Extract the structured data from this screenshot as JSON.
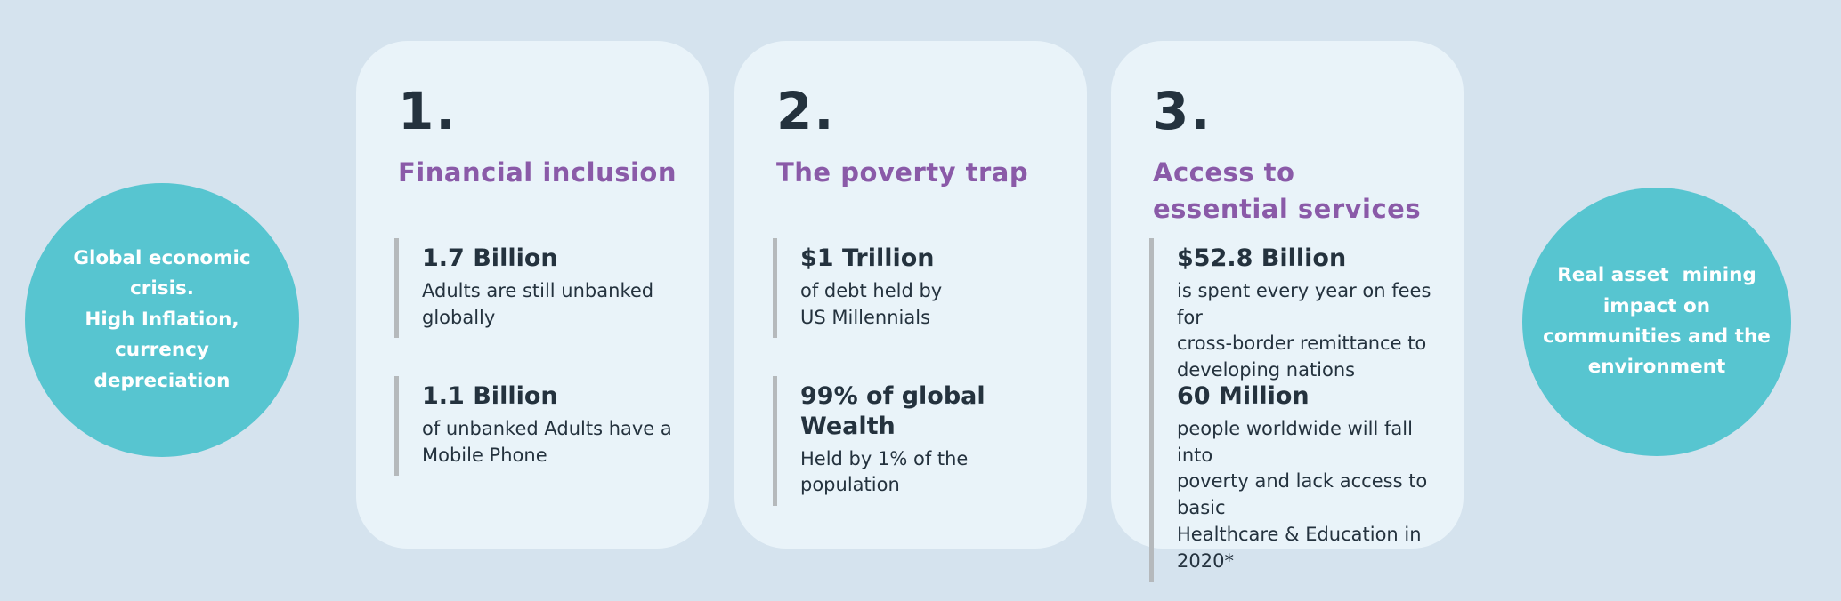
{
  "theme": {
    "bg": "#d5e3ee",
    "card": "#e9f3f9",
    "teal": "#57c5d0",
    "purple": "#8a5aa8",
    "dark": "#24323e",
    "bar": "#b5b9bc"
  },
  "left_circle": {
    "text": "Global economic\ncrisis.\nHigh Inflation,\ncurrency\ndepreciation"
  },
  "right_circle": {
    "text": "Real asset  mining\nimpact on\ncommunities and the\nenvironment"
  },
  "cards": [
    {
      "number": "1.",
      "title": "Financial inclusion",
      "stats": [
        {
          "value": "1.7 Billion",
          "description": "Adults are still unbanked\nglobally"
        },
        {
          "value": "1.1 Billion",
          "description": "of unbanked Adults have a\nMobile Phone"
        }
      ]
    },
    {
      "number": "2.",
      "title": "The poverty trap",
      "stats": [
        {
          "value": "$1 Trillion",
          "description": "of debt held by\nUS Millennials"
        },
        {
          "value": "99% of global Wealth",
          "description": "Held by 1% of the\npopulation"
        }
      ]
    },
    {
      "number": "3.",
      "title": "Access to essential services",
      "stats": [
        {
          "value": "$52.8 Billion",
          "description": "is spent every year on fees for\ncross-border remittance to\ndeveloping nations"
        },
        {
          "value": "60 Million",
          "description": "people worldwide will fall into\npoverty and lack access to basic\nHealthcare & Education in 2020*"
        }
      ]
    }
  ]
}
